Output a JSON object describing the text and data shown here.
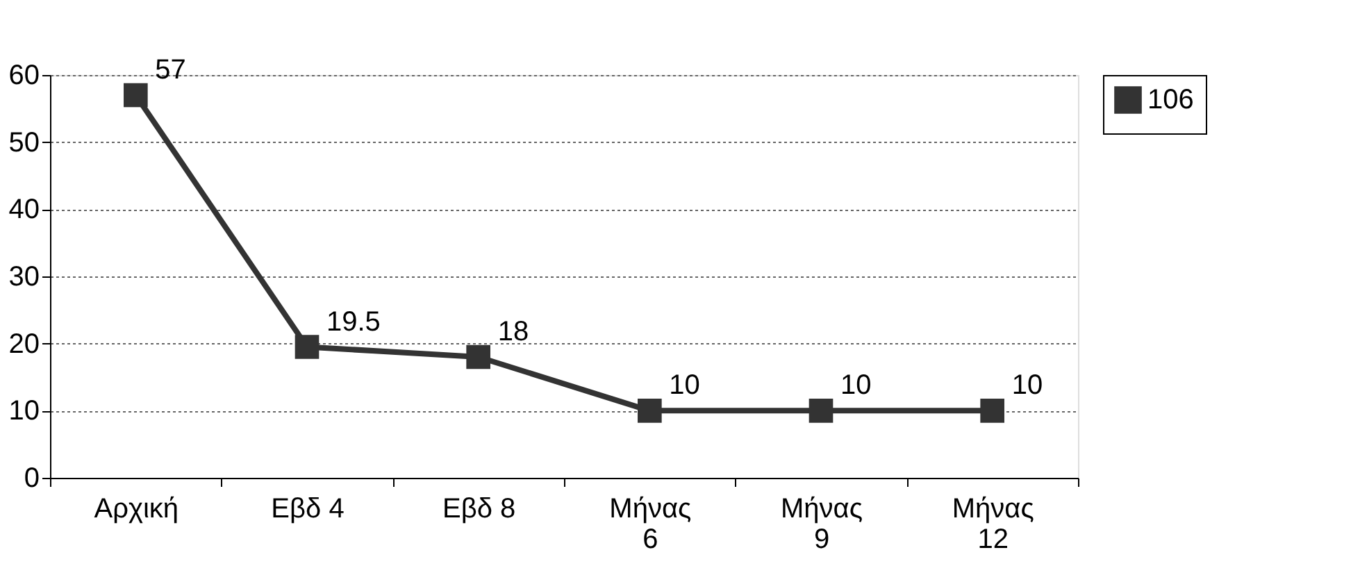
{
  "chart_data": {
    "type": "line",
    "categories": [
      "Αρχική",
      "Εβδ 4",
      "Εβδ 8",
      "Μήνας\n6",
      "Μήνας\n9",
      "Μήνας\n12"
    ],
    "series": [
      {
        "name": "106",
        "color": "#333333",
        "values": [
          57,
          19.5,
          18,
          10,
          10,
          10
        ]
      }
    ],
    "ylim": [
      0,
      60
    ],
    "yticks": [
      0,
      10,
      20,
      30,
      40,
      50,
      60
    ],
    "grid": "y",
    "legend": "right",
    "marker": "square",
    "line_style": "solid",
    "data_labels": true
  }
}
